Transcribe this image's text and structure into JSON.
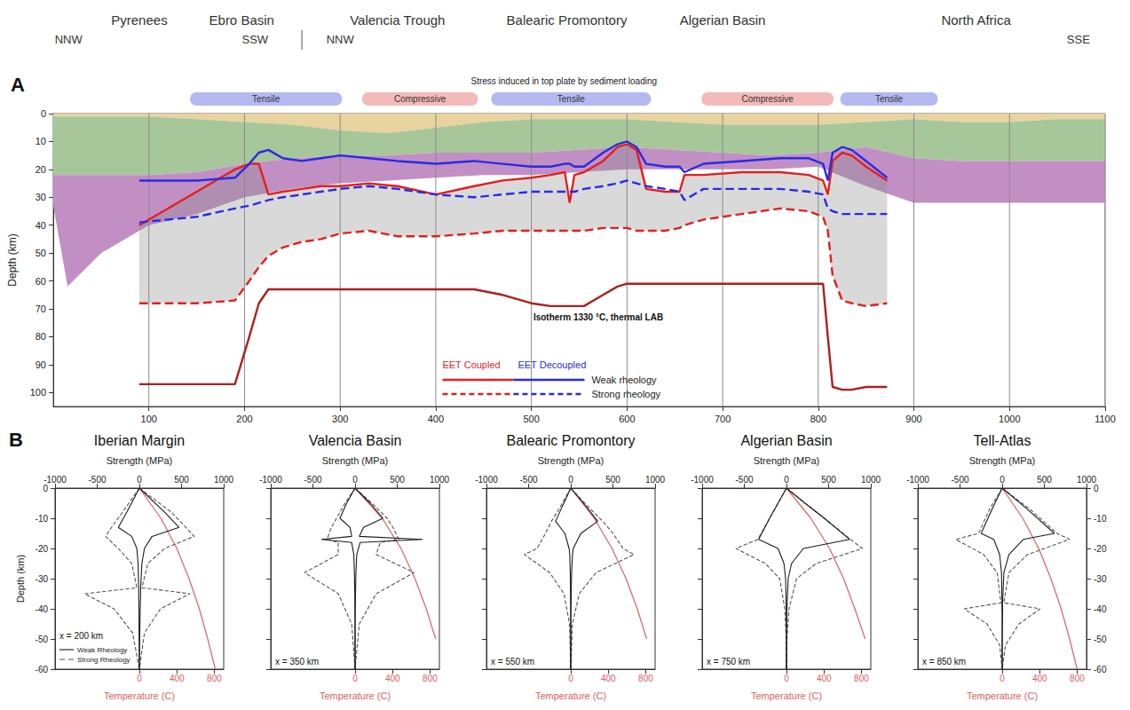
{
  "chart_data": [
    {
      "type": "line",
      "title": "A",
      "ylabel": "Depth (km)",
      "xlim": [
        0,
        1100
      ],
      "xticks": [
        100,
        200,
        300,
        400,
        500,
        600,
        700,
        800,
        900,
        1000,
        1100
      ],
      "ylim": [
        0,
        105
      ],
      "yticks": [
        0,
        10,
        20,
        30,
        40,
        50,
        60,
        70,
        80,
        90,
        100
      ],
      "grid": true,
      "legend": "bottom",
      "regions": [
        {
          "text": "Pyrenees",
          "x": 90
        },
        {
          "text": "Ebro Basin",
          "x": 197
        },
        {
          "text": "Valencia Trough",
          "x": 360
        },
        {
          "text": "Balearic Promontory",
          "x": 537
        },
        {
          "text": "Algerian Basin",
          "x": 700
        },
        {
          "text": "North Africa",
          "x": 965
        }
      ],
      "directions": [
        {
          "text": "NNW",
          "x": 16
        },
        {
          "text": "SSW",
          "x": 211
        },
        {
          "text": "NNW",
          "x": 300
        },
        {
          "text": "SSE",
          "x": 1072
        }
      ],
      "section_break": 260,
      "stress": {
        "title": "Stress induced in top plate by sediment loading",
        "segments": [
          {
            "text": "Tensile",
            "start": 143,
            "end": 302,
            "color": "#b4b9f2"
          },
          {
            "text": "Compressive",
            "start": 323,
            "end": 444,
            "color": "#f4b9b9"
          },
          {
            "text": "Tensile",
            "start": 458,
            "end": 625,
            "color": "#b4b9f2"
          },
          {
            "text": "Compressive",
            "start": 678,
            "end": 816,
            "color": "#f4b9b9"
          },
          {
            "text": "Tensile",
            "start": 823,
            "end": 925,
            "color": "#b4b9f2"
          }
        ]
      },
      "layers": {
        "x": [
          0,
          15,
          50,
          100,
          150,
          200,
          250,
          300,
          350,
          400,
          450,
          500,
          550,
          600,
          650,
          700,
          750,
          800,
          850,
          900,
          950,
          1000,
          1050,
          1100
        ],
        "boundaries": [
          [
            0,
            0,
            0,
            0,
            0,
            0,
            0,
            0,
            0,
            0,
            0,
            0,
            0,
            0,
            0,
            0,
            0,
            0,
            0,
            0,
            0,
            0,
            0,
            0
          ],
          [
            1,
            1,
            1,
            1,
            2,
            3,
            4,
            6,
            7,
            5,
            3,
            2,
            2,
            2,
            3,
            4,
            4,
            4,
            3,
            2,
            3,
            3,
            2,
            2
          ],
          [
            22,
            22,
            22,
            22,
            21,
            18,
            16,
            15,
            15,
            14,
            14,
            14,
            13,
            12,
            13,
            14,
            15,
            14,
            12,
            16,
            17,
            17,
            17,
            17
          ],
          [
            33,
            62,
            50,
            40,
            36,
            30,
            27,
            25,
            24,
            23,
            22,
            22,
            21,
            20,
            20,
            20,
            20,
            19,
            26,
            32,
            32,
            32,
            32,
            32
          ]
        ],
        "colors": [
          "#e9d3a0",
          "#a7c79a",
          "#c28fc4"
        ]
      },
      "x": [
        90,
        150,
        190,
        205,
        215,
        225,
        240,
        260,
        280,
        300,
        330,
        360,
        400,
        440,
        470,
        500,
        520,
        535,
        540,
        545,
        555,
        575,
        590,
        600,
        610,
        620,
        640,
        655,
        660,
        680,
        720,
        760,
        790,
        805,
        810,
        815,
        825,
        835,
        850,
        872
      ],
      "series": [
        {
          "name": "EET Coupled",
          "rheology": "Weak rheology",
          "color": "#e41f1c",
          "line_style": "solid",
          "values": [
            40,
            28,
            20,
            18,
            18,
            29,
            28,
            27,
            26,
            26,
            25,
            26,
            29,
            26,
            24,
            23,
            22,
            21,
            32,
            22,
            21,
            17,
            12,
            11,
            13,
            27,
            28,
            28,
            22,
            22,
            21,
            21,
            22,
            24,
            29,
            17,
            14,
            15,
            19,
            24
          ]
        },
        {
          "name": "EET Coupled",
          "rheology": "Strong rheology",
          "color": "#e41f1c",
          "line_style": "dashed",
          "values": [
            68,
            68,
            67,
            60,
            55,
            51,
            48,
            46,
            45,
            43,
            42,
            44,
            44,
            43,
            42,
            42,
            42,
            42,
            42,
            42,
            42,
            41,
            41,
            41,
            42,
            42,
            42,
            41,
            40,
            38,
            36,
            34,
            35,
            37,
            42,
            58,
            67,
            68,
            69,
            68
          ]
        },
        {
          "name": "EET Decoupled",
          "rheology": "Weak rheology",
          "color": "#2a2ae6",
          "line_style": "solid",
          "values": [
            24,
            24,
            23,
            18,
            14,
            13,
            16,
            17,
            16,
            15,
            16,
            17,
            18,
            17,
            18,
            19,
            19,
            18,
            18,
            19,
            19,
            14,
            11,
            10,
            12,
            18,
            19,
            19,
            21,
            18,
            17,
            16,
            16,
            18,
            24,
            14,
            12,
            13,
            17,
            23
          ]
        },
        {
          "name": "EET Decoupled",
          "rheology": "Strong rheology",
          "color": "#2a2ae6",
          "line_style": "dashed",
          "values": [
            39,
            37,
            34,
            33,
            32,
            31,
            30,
            29,
            28,
            27,
            26,
            27,
            29,
            30,
            29,
            28,
            28,
            28,
            28,
            28,
            27,
            26,
            25,
            24,
            25,
            26,
            27,
            28,
            31,
            27,
            27,
            27,
            28,
            29,
            34,
            35,
            36,
            36,
            36,
            36
          ]
        },
        {
          "name": "Isotherm 1330 °C, thermal LAB",
          "color": "#b01e1e",
          "line_style": "solid",
          "label_x": 570,
          "label_y": 73,
          "values": [
            97,
            97,
            97,
            80,
            68,
            63,
            63,
            63,
            63,
            63,
            63,
            63,
            63,
            63,
            65,
            68,
            69,
            69,
            69,
            69,
            69,
            65,
            62,
            61,
            61,
            61,
            61,
            61,
            61,
            61,
            61,
            61,
            61,
            61,
            80,
            98,
            99,
            99,
            98,
            98
          ]
        }
      ]
    },
    {
      "type": "line",
      "title": "B",
      "xlabel": "Strength (MPa)",
      "ylabel": "Depth (km)",
      "x2label": "Temperature (C)",
      "xlim": [
        -1000,
        1000
      ],
      "xticks": [
        -1000,
        -500,
        0,
        500,
        1000
      ],
      "x2lim": [
        -900,
        900
      ],
      "x2ticks": [
        0,
        400,
        800
      ],
      "ylim": [
        -60,
        0
      ],
      "yticks": [
        -60,
        -50,
        -40,
        -30,
        -20,
        -10,
        0
      ],
      "legend": "lower left",
      "curves": [
        {
          "name": "Weak Rheology",
          "line_style": "solid",
          "color": "#1a1a1a"
        },
        {
          "name": "Strong Rheology",
          "line_style": "dashed",
          "color": "#555555"
        }
      ],
      "geotherm": {
        "color": "#e06060",
        "depth": [
          0,
          -10,
          -20,
          -30,
          -40,
          -50,
          -60
        ]
      },
      "panels": [
        {
          "title": "Iberian Margin",
          "location": "x = 200 km",
          "depth": [
            0,
            -8,
            -13,
            -16,
            -20,
            -25,
            -33,
            -35,
            -40,
            -48,
            -60
          ],
          "compression": [
            [
              0,
              300,
              470,
              150,
              60,
              30,
              15,
              15,
              10,
              5,
              0
            ],
            [
              0,
              380,
              550,
              650,
              300,
              100,
              30,
              600,
              250,
              60,
              0
            ]
          ],
          "tension": [
            [
              0,
              -150,
              -250,
              -90,
              -30,
              -15,
              -8,
              -8,
              -5,
              -3,
              0
            ],
            [
              0,
              -200,
              -330,
              -400,
              -250,
              -90,
              -30,
              -650,
              -300,
              -80,
              0
            ]
          ],
          "temperature": [
            0,
            230,
            400,
            530,
            640,
            730,
            810
          ]
        },
        {
          "title": "Valencia Basin",
          "location": "x = 350 km",
          "depth": [
            0,
            -5,
            -10,
            -13,
            -16,
            -17,
            -18,
            -22,
            -28,
            -35,
            -45,
            -60
          ],
          "compression": [
            [
              0,
              180,
              330,
              100,
              50,
              800,
              60,
              20,
              10,
              5,
              0,
              0
            ],
            [
              0,
              200,
              380,
              450,
              500,
              520,
              300,
              250,
              700,
              250,
              50,
              0
            ]
          ],
          "tension": [
            [
              0,
              -100,
              -180,
              -60,
              -40,
              -400,
              -40,
              -15,
              -8,
              -3,
              0,
              0
            ],
            [
              0,
              -120,
              -220,
              -280,
              -320,
              -330,
              -200,
              -200,
              -600,
              -200,
              -40,
              0
            ]
          ],
          "temperature": [
            0,
            290,
            490,
            640,
            760,
            860,
            null
          ]
        },
        {
          "title": "Balearic Promontory",
          "location": "x = 550 km",
          "depth": [
            0,
            -6,
            -11,
            -15,
            -20,
            -22,
            -28,
            -35,
            -45,
            -60
          ],
          "compression": [
            [
              0,
              180,
              320,
              120,
              30,
              20,
              10,
              5,
              0,
              0
            ],
            [
              0,
              200,
              380,
              500,
              620,
              750,
              300,
              100,
              20,
              0
            ]
          ],
          "tension": [
            [
              0,
              -100,
              -180,
              -70,
              -20,
              -12,
              -6,
              -3,
              0,
              0
            ],
            [
              0,
              -120,
              -230,
              -300,
              -400,
              -550,
              -250,
              -80,
              -15,
              0
            ]
          ],
          "temperature": [
            0,
            250,
            440,
            590,
            710,
            810,
            null
          ]
        },
        {
          "title": "Algerian Basin",
          "location": "x = 750 km",
          "depth": [
            0,
            -5,
            -10,
            -17,
            -20,
            -25,
            -30,
            -40,
            -50,
            -60
          ],
          "compression": [
            [
              0,
              220,
              450,
              750,
              200,
              60,
              20,
              5,
              0,
              0
            ],
            [
              0,
              220,
              450,
              760,
              900,
              350,
              120,
              30,
              5,
              0
            ]
          ],
          "tension": [
            [
              0,
              -100,
              -200,
              -330,
              -100,
              -30,
              -10,
              -3,
              0,
              0
            ],
            [
              0,
              -100,
              -200,
              -340,
              -600,
              -250,
              -80,
              -20,
              -3,
              0
            ]
          ],
          "temperature": [
            0,
            260,
            460,
            610,
            730,
            840,
            null
          ]
        },
        {
          "title": "Tell-Atlas",
          "location": "x = 850 km",
          "depth": [
            0,
            -7,
            -15,
            -17,
            -22,
            -28,
            -38,
            -40,
            -45,
            -52,
            -60
          ],
          "compression": [
            [
              0,
              300,
              620,
              250,
              80,
              20,
              5,
              5,
              2,
              0,
              0
            ],
            [
              0,
              330,
              650,
              800,
              300,
              80,
              20,
              450,
              200,
              40,
              0
            ]
          ],
          "tension": [
            [
              0,
              -120,
              -250,
              -100,
              -30,
              -8,
              -2,
              -2,
              0,
              0,
              0
            ],
            [
              0,
              -150,
              -280,
              -550,
              -220,
              -60,
              -15,
              -450,
              -180,
              -30,
              0
            ]
          ],
          "temperature": [
            0,
            220,
            390,
            520,
            630,
            720,
            800
          ]
        }
      ]
    }
  ]
}
